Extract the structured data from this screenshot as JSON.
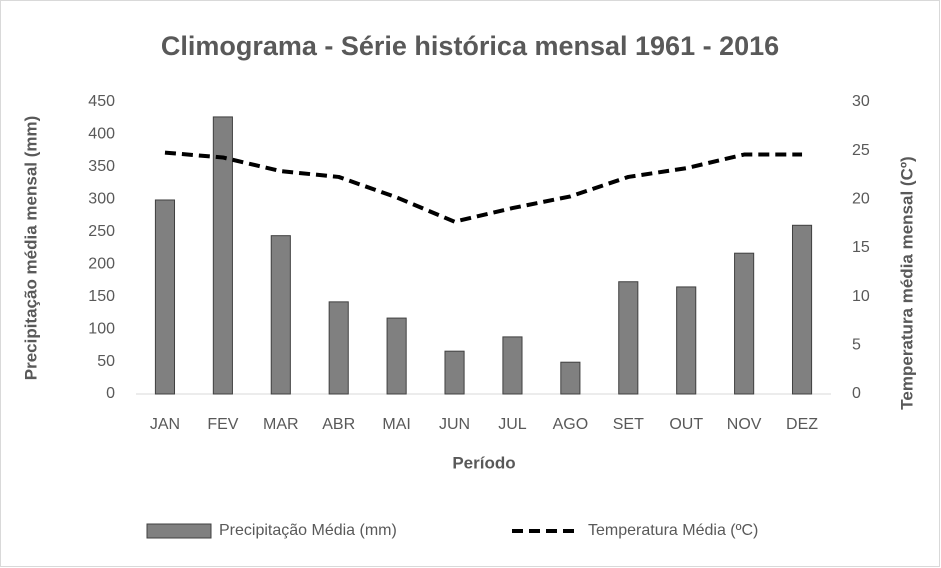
{
  "chart_data": {
    "type": "bar",
    "title": "Climograma - Série histórica mensal 1961 - 2016",
    "x_label": "Período",
    "y_label": "Precipitação média mensal (mm)",
    "y2_label": "Temperatura média mensal (Cº)",
    "categories": [
      "JAN",
      "FEV",
      "MAR",
      "ABR",
      "MAI",
      "JUN",
      "JUL",
      "AGO",
      "SET",
      "OUT",
      "NOV",
      "DEZ"
    ],
    "series": [
      {
        "name": "Precipitação Média (mm)",
        "type": "bar",
        "color": "#808080",
        "axis": "y",
        "values": [
          299,
          427,
          244,
          142,
          117,
          66,
          88,
          49,
          173,
          165,
          217,
          260
        ]
      },
      {
        "name": "Temperatura Média (ºC)",
        "type": "line",
        "color": "#000000",
        "axis": "y2",
        "dashed": true,
        "values": [
          24.8,
          24.3,
          22.9,
          22.3,
          20.2,
          17.7,
          19.1,
          20.3,
          22.3,
          23.2,
          24.6,
          24.6
        ]
      }
    ],
    "ylim": [
      0,
      450
    ],
    "yticks": [
      0,
      50,
      100,
      150,
      200,
      250,
      300,
      350,
      400,
      450
    ],
    "y2lim": [
      0,
      30
    ],
    "y2ticks": [
      0,
      5,
      10,
      15,
      20,
      25,
      30
    ],
    "grid": false,
    "legend": "bottom"
  }
}
